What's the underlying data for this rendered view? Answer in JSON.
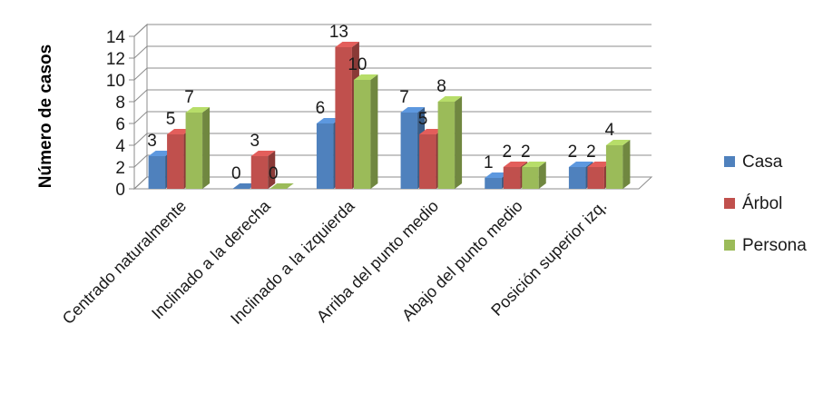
{
  "chart_data": {
    "type": "bar",
    "ylabel": "Número de casos",
    "ylim": [
      0,
      14
    ],
    "yticks": [
      0,
      2,
      4,
      6,
      8,
      10,
      12,
      14
    ],
    "grid": true,
    "legend_position": "right",
    "categories": [
      "Centrado naturalmente",
      "Inclinado a la derecha",
      "Inclinado a la izquierda",
      "Arriba del punto medio",
      "Abajo del punto medio",
      "Posición superior izq."
    ],
    "series": [
      {
        "name": "Casa",
        "color": "#4F81BD",
        "values": [
          3,
          0,
          6,
          7,
          1,
          2
        ]
      },
      {
        "name": "Árbol",
        "color": "#C0504D",
        "values": [
          5,
          3,
          13,
          5,
          2,
          2
        ]
      },
      {
        "name": "Persona",
        "color": "#9BBB59",
        "values": [
          7,
          0,
          10,
          8,
          2,
          4
        ]
      }
    ]
  }
}
